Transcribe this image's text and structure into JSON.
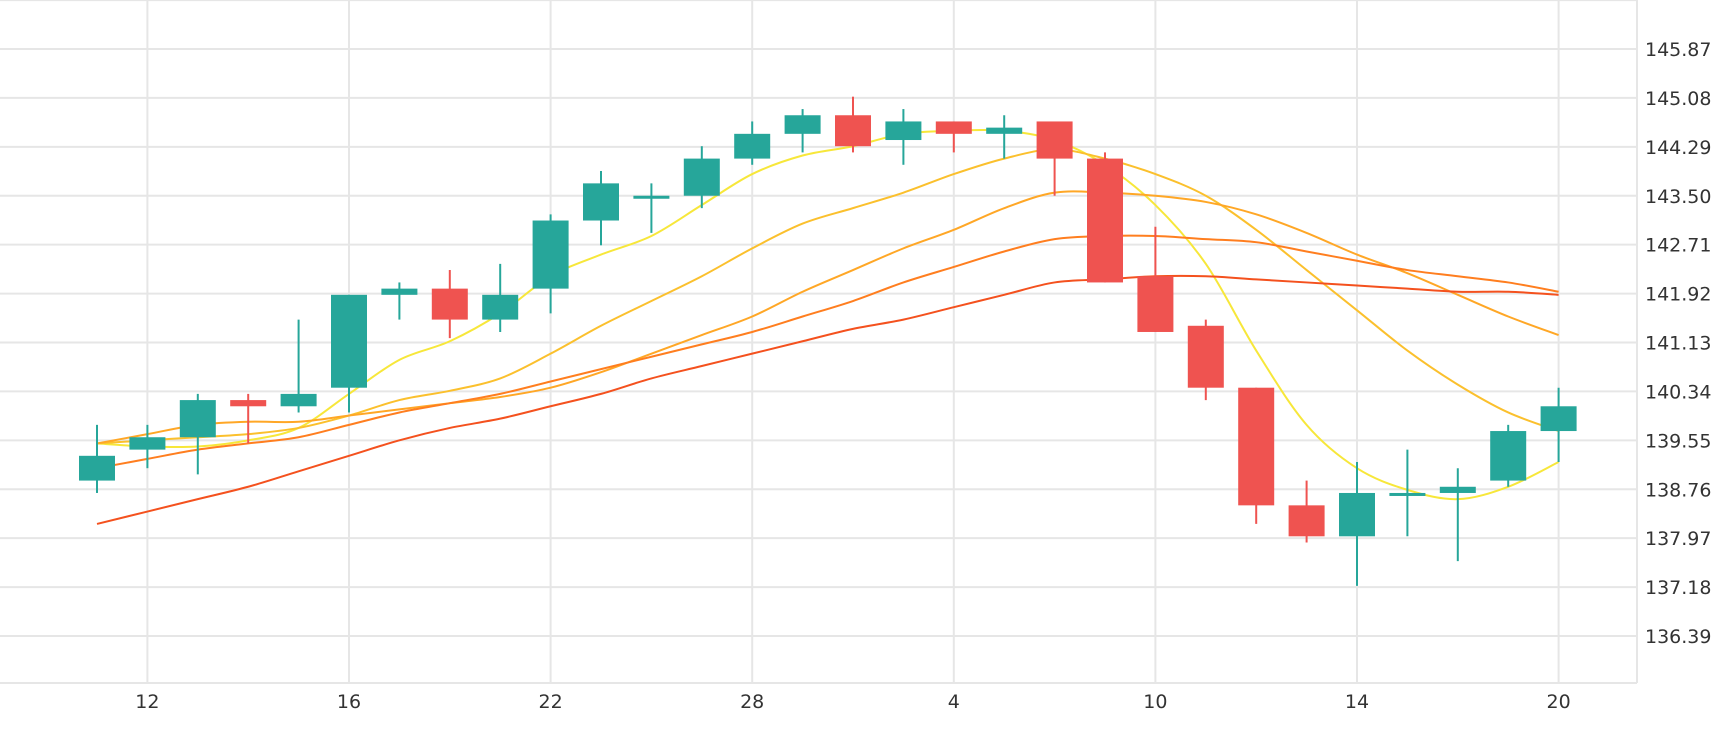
{
  "colors": {
    "up": "#26a69a",
    "down": "#ef5350",
    "grid": "#e6e6e6",
    "text": "#333333"
  },
  "chart_data": {
    "type": "candlestick",
    "title": "",
    "xlabel": "",
    "ylabel": "",
    "y_axis_position": "right",
    "grid": true,
    "legend": "none",
    "ylim": [
      135.6,
      146.66
    ],
    "y_ticks": [
      "145.87",
      "145.08",
      "144.29",
      "143.50",
      "142.71",
      "141.92",
      "141.13",
      "140.34",
      "139.55",
      "138.76",
      "137.97",
      "137.18",
      "136.39"
    ],
    "x_tick_labels": [
      "12",
      "16",
      "22",
      "28",
      "4",
      "10",
      "14",
      "20"
    ],
    "x_tick_positions": [
      1,
      5,
      9,
      13,
      17,
      21,
      25,
      29
    ],
    "candles": [
      {
        "o": 138.9,
        "h": 139.8,
        "l": 138.7,
        "c": 139.3
      },
      {
        "o": 139.4,
        "h": 139.8,
        "l": 139.1,
        "c": 139.6
      },
      {
        "o": 139.6,
        "h": 140.3,
        "l": 139.0,
        "c": 140.2
      },
      {
        "o": 140.2,
        "h": 140.3,
        "l": 139.5,
        "c": 140.1
      },
      {
        "o": 140.1,
        "h": 141.5,
        "l": 140.0,
        "c": 140.3
      },
      {
        "o": 140.4,
        "h": 141.9,
        "l": 140.0,
        "c": 141.9
      },
      {
        "o": 141.9,
        "h": 142.1,
        "l": 141.5,
        "c": 142.0
      },
      {
        "o": 142.0,
        "h": 142.3,
        "l": 141.2,
        "c": 141.5
      },
      {
        "o": 141.5,
        "h": 142.4,
        "l": 141.3,
        "c": 141.9
      },
      {
        "o": 142.0,
        "h": 143.2,
        "l": 141.6,
        "c": 143.1
      },
      {
        "o": 143.1,
        "h": 143.9,
        "l": 142.7,
        "c": 143.7
      },
      {
        "o": 143.5,
        "h": 143.7,
        "l": 142.9,
        "c": 143.5
      },
      {
        "o": 143.5,
        "h": 144.3,
        "l": 143.3,
        "c": 144.1
      },
      {
        "o": 144.1,
        "h": 144.7,
        "l": 144.0,
        "c": 144.5
      },
      {
        "o": 144.5,
        "h": 144.9,
        "l": 144.2,
        "c": 144.8
      },
      {
        "o": 144.8,
        "h": 145.1,
        "l": 144.2,
        "c": 144.3
      },
      {
        "o": 144.4,
        "h": 144.9,
        "l": 144.0,
        "c": 144.7
      },
      {
        "o": 144.7,
        "h": 144.7,
        "l": 144.2,
        "c": 144.5
      },
      {
        "o": 144.5,
        "h": 144.8,
        "l": 144.1,
        "c": 144.6
      },
      {
        "o": 144.7,
        "h": 144.7,
        "l": 143.5,
        "c": 144.1
      },
      {
        "o": 144.1,
        "h": 144.2,
        "l": 142.1,
        "c": 142.1
      },
      {
        "o": 142.2,
        "h": 143.0,
        "l": 141.3,
        "c": 141.3
      },
      {
        "o": 141.4,
        "h": 141.5,
        "l": 140.2,
        "c": 140.4
      },
      {
        "o": 140.4,
        "h": 140.4,
        "l": 138.2,
        "c": 138.5
      },
      {
        "o": 138.5,
        "h": 138.9,
        "l": 137.9,
        "c": 138.0
      },
      {
        "o": 138.0,
        "h": 139.2,
        "l": 137.2,
        "c": 138.7
      },
      {
        "o": 138.7,
        "h": 139.4,
        "l": 138.0,
        "c": 138.7
      },
      {
        "o": 138.7,
        "h": 139.1,
        "l": 137.6,
        "c": 138.8
      },
      {
        "o": 138.9,
        "h": 139.8,
        "l": 138.8,
        "c": 139.7
      },
      {
        "o": 139.7,
        "h": 140.4,
        "l": 139.2,
        "c": 140.1
      }
    ],
    "series": [
      {
        "color": "#f7e73a",
        "values": [
          139.5,
          139.45,
          139.45,
          139.55,
          139.75,
          140.3,
          140.85,
          141.15,
          141.6,
          142.2,
          142.55,
          142.85,
          143.35,
          143.85,
          144.15,
          144.3,
          144.5,
          144.55,
          144.55,
          144.4,
          144.0,
          143.35,
          142.4,
          141.0,
          139.8,
          139.1,
          138.75,
          138.6,
          138.8,
          139.2
        ]
      },
      {
        "color": "#fbc02d",
        "values": [
          139.5,
          139.55,
          139.6,
          139.65,
          139.75,
          139.95,
          140.2,
          140.35,
          140.55,
          140.95,
          141.4,
          141.8,
          142.2,
          142.65,
          143.05,
          143.3,
          143.55,
          143.85,
          144.1,
          144.25,
          144.1,
          143.85,
          143.5,
          142.95,
          142.3,
          141.65,
          141.0,
          140.45,
          140.0,
          139.7
        ]
      },
      {
        "color": "#ffa726",
        "values": [
          139.5,
          139.65,
          139.8,
          139.85,
          139.85,
          139.95,
          140.05,
          140.15,
          140.25,
          140.4,
          140.65,
          140.95,
          141.25,
          141.55,
          141.95,
          142.3,
          142.65,
          142.95,
          143.3,
          143.55,
          143.55,
          143.5,
          143.4,
          143.2,
          142.9,
          142.55,
          142.25,
          141.9,
          141.55,
          141.25
        ]
      },
      {
        "color": "#ff7e1f",
        "values": [
          139.1,
          139.25,
          139.4,
          139.5,
          139.6,
          139.8,
          140.0,
          140.15,
          140.3,
          140.5,
          140.7,
          140.9,
          141.1,
          141.3,
          141.55,
          141.8,
          142.1,
          142.35,
          142.6,
          142.8,
          142.85,
          142.85,
          142.8,
          142.75,
          142.6,
          142.45,
          142.3,
          142.2,
          142.1,
          141.95
        ]
      },
      {
        "color": "#f4511e",
        "values": [
          138.2,
          138.4,
          138.6,
          138.8,
          139.05,
          139.3,
          139.55,
          139.75,
          139.9,
          140.1,
          140.3,
          140.55,
          140.75,
          140.95,
          141.15,
          141.35,
          141.5,
          141.7,
          141.9,
          142.1,
          142.15,
          142.2,
          142.2,
          142.15,
          142.1,
          142.05,
          142.0,
          141.95,
          141.95,
          141.9
        ]
      }
    ]
  }
}
